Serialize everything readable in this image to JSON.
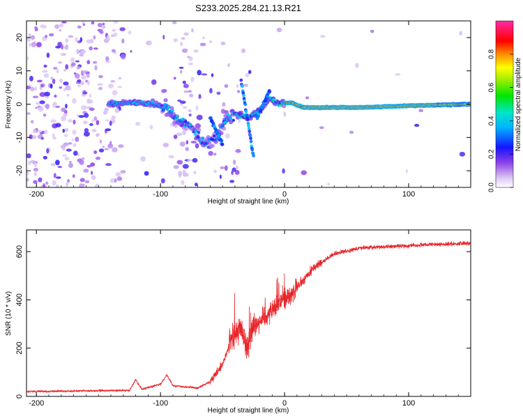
{
  "title": "S233.2025.284.21.13.R21",
  "chart_data": [
    {
      "type": "heatmap",
      "name": "spectrogram",
      "xlabel": "Height of straight line (km)",
      "ylabel": "Frequency (Hz)",
      "xlim": [
        -208,
        150
      ],
      "ylim": [
        -25,
        25
      ],
      "xticks": [
        -200,
        -100,
        0,
        100
      ],
      "yticks": [
        -20,
        -10,
        0,
        10,
        20
      ],
      "colorbar": {
        "label": "Normalized spectral amplitude",
        "range": [
          0,
          1
        ],
        "ticks": [
          0.0,
          0.2,
          0.4,
          0.6,
          0.8
        ]
      },
      "ridge": [
        {
          "x": -140,
          "f": 0
        },
        {
          "x": -120,
          "f": 0.5
        },
        {
          "x": -105,
          "f": 0
        },
        {
          "x": -95,
          "f": -1
        },
        {
          "x": -85,
          "f": -5
        },
        {
          "x": -75,
          "f": -7
        },
        {
          "x": -65,
          "f": -12
        },
        {
          "x": -55,
          "f": -10
        },
        {
          "x": -48,
          "f": -5
        },
        {
          "x": -40,
          "f": -3
        },
        {
          "x": -30,
          "f": -4
        },
        {
          "x": -20,
          "f": -2
        },
        {
          "x": -12,
          "f": 2
        },
        {
          "x": -5,
          "f": 0
        },
        {
          "x": 5,
          "f": 0.5
        },
        {
          "x": 15,
          "f": -1
        },
        {
          "x": 60,
          "f": -1
        },
        {
          "x": 100,
          "f": -0.5
        },
        {
          "x": 150,
          "f": 0
        }
      ]
    },
    {
      "type": "line",
      "name": "snr",
      "xlabel": "Height of straight line (km)",
      "ylabel": "SNR (10 * v/v)",
      "xlim": [
        -208,
        150
      ],
      "ylim": [
        0,
        690
      ],
      "xticks": [
        -200,
        -100,
        0,
        100
      ],
      "yticks": [
        0,
        200,
        400,
        600
      ],
      "color": "#e8262a",
      "envelope": [
        {
          "x": -208,
          "y": 20
        },
        {
          "x": -125,
          "y": 25
        },
        {
          "x": -120,
          "y": 70
        },
        {
          "x": -115,
          "y": 30
        },
        {
          "x": -100,
          "y": 50
        },
        {
          "x": -95,
          "y": 90
        },
        {
          "x": -90,
          "y": 45
        },
        {
          "x": -70,
          "y": 35
        },
        {
          "x": -60,
          "y": 60
        },
        {
          "x": -50,
          "y": 130
        },
        {
          "x": -42,
          "y": 250
        },
        {
          "x": -35,
          "y": 280
        },
        {
          "x": -30,
          "y": 200
        },
        {
          "x": -25,
          "y": 300
        },
        {
          "x": -15,
          "y": 330
        },
        {
          "x": -5,
          "y": 390
        },
        {
          "x": 5,
          "y": 420
        },
        {
          "x": 15,
          "y": 480
        },
        {
          "x": 25,
          "y": 540
        },
        {
          "x": 40,
          "y": 590
        },
        {
          "x": 60,
          "y": 615
        },
        {
          "x": 100,
          "y": 625
        },
        {
          "x": 150,
          "y": 635
        }
      ]
    }
  ]
}
